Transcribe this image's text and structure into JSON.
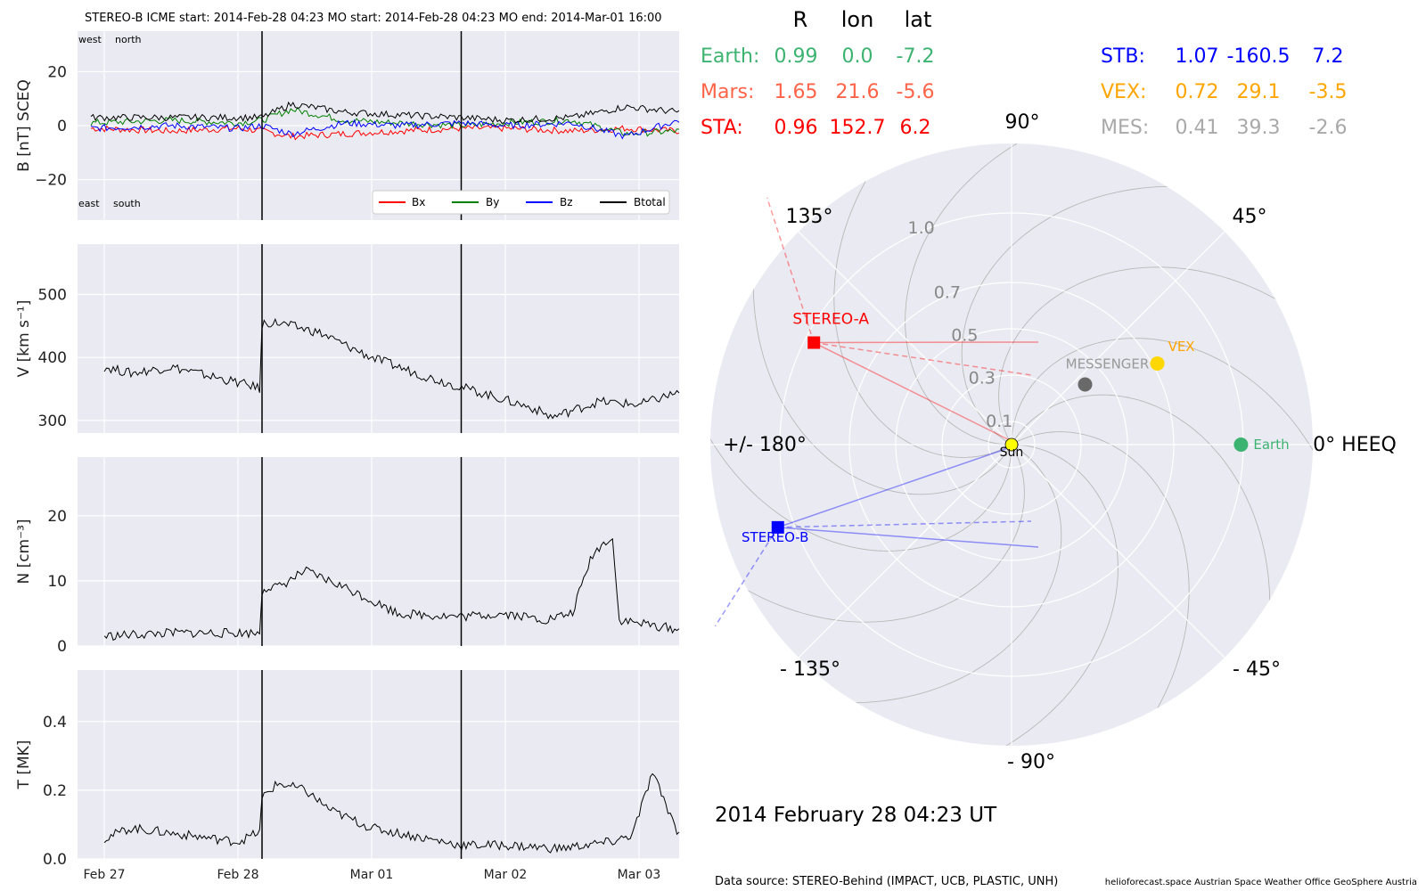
{
  "header": "STEREO-B    ICME start: 2014-Feb-28 04:23    MO start: 2014-Feb-28 04:23    MO end: 2014-Mar-01 16:00",
  "time_axis": {
    "start_day": "Feb 27 00:00",
    "ticks": [
      "Feb 27",
      "Feb 28",
      "Mar 01",
      "Mar 02",
      "Mar 03"
    ],
    "range_days": [
      -0.2,
      4.3
    ],
    "event_lines_days": [
      1.18,
      2.67
    ]
  },
  "panel_annotations": {
    "west": "west",
    "north": "north",
    "east": "east",
    "south": "south"
  },
  "legend": [
    "Bx",
    "By",
    "Bz",
    "Btotal"
  ],
  "colors": {
    "Bx": "#ff0000",
    "By": "#008000",
    "Bz": "#0000ff",
    "Btotal": "#000000",
    "plot_bg": "#eaeaf2",
    "earth": "#3cb371",
    "mars": "#ff6347",
    "sta": "#ff0000",
    "stb": "#0000ff",
    "vex": "#ffa500",
    "mes": "#a9a9a9"
  },
  "chart_data": [
    {
      "type": "line",
      "ylabel": "B [nT] SCEQ",
      "ylim": [
        -35,
        35
      ],
      "yticks": [
        "20",
        "0",
        "−20"
      ],
      "ytick_values": [
        20,
        0,
        -20
      ],
      "series": [
        {
          "name": "Bx",
          "x": [
            -0.1,
            0.5,
            1.0,
            1.18,
            1.4,
            1.8,
            2.2,
            2.67,
            3.0,
            3.5,
            3.9,
            4.3
          ],
          "y": [
            -1,
            -2,
            -1,
            -2,
            -4,
            -3,
            -2,
            -1,
            -1,
            -2,
            -1,
            -2
          ]
        },
        {
          "name": "By",
          "x": [
            -0.1,
            0.5,
            1.0,
            1.18,
            1.4,
            1.8,
            2.2,
            2.67,
            3.0,
            3.5,
            3.9,
            4.3
          ],
          "y": [
            1,
            2,
            1,
            2,
            6,
            2,
            1,
            0,
            1,
            2,
            -3,
            -2
          ]
        },
        {
          "name": "Bz",
          "x": [
            -0.1,
            0.5,
            1.0,
            1.18,
            1.4,
            1.8,
            2.2,
            2.67,
            3.0,
            3.5,
            3.9,
            4.3
          ],
          "y": [
            -1,
            0,
            -1,
            0,
            -3,
            1,
            0,
            1,
            0,
            1,
            -4,
            2
          ]
        },
        {
          "name": "Btotal",
          "x": [
            -0.1,
            0.5,
            1.0,
            1.18,
            1.4,
            1.8,
            2.2,
            2.67,
            3.0,
            3.5,
            3.9,
            4.3
          ],
          "y": [
            3,
            3,
            3,
            3,
            8,
            5,
            4,
            3,
            2,
            3,
            7,
            5
          ]
        }
      ]
    },
    {
      "type": "line",
      "ylabel": "V [km s⁻¹]",
      "ylim": [
        280,
        580
      ],
      "yticks": [
        "500",
        "400",
        "300"
      ],
      "ytick_values": [
        500,
        400,
        300
      ],
      "series": [
        {
          "name": "V",
          "x": [
            0.0,
            0.2,
            0.5,
            0.8,
            1.1,
            1.17,
            1.18,
            1.3,
            1.6,
            2.0,
            2.4,
            2.8,
            3.2,
            3.35,
            3.7,
            4.0,
            4.3
          ],
          "y": [
            385,
            375,
            385,
            370,
            355,
            350,
            455,
            455,
            440,
            400,
            370,
            345,
            320,
            305,
            330,
            325,
            345
          ]
        }
      ]
    },
    {
      "type": "line",
      "ylabel": "N [cm⁻³]",
      "ylim": [
        0,
        29
      ],
      "yticks": [
        "20",
        "10",
        "0"
      ],
      "ytick_values": [
        20,
        10,
        0
      ],
      "series": [
        {
          "name": "N",
          "x": [
            0.0,
            0.5,
            1.0,
            1.17,
            1.18,
            1.3,
            1.5,
            1.8,
            2.2,
            2.67,
            3.0,
            3.3,
            3.5,
            3.65,
            3.8,
            3.85,
            4.0,
            4.3
          ],
          "y": [
            1.5,
            2.0,
            2.0,
            2.0,
            9.0,
            9.0,
            11.5,
            9.0,
            5.0,
            4.5,
            5.0,
            4.0,
            5.0,
            14.0,
            17.0,
            4.0,
            3.5,
            2.5
          ]
        }
      ]
    },
    {
      "type": "line",
      "ylabel": "T [MK]",
      "ylim": [
        0,
        0.55
      ],
      "yticks": [
        "0.4",
        "0.2",
        "0.0"
      ],
      "ytick_values": [
        0.4,
        0.2,
        0.0
      ],
      "series": [
        {
          "name": "T",
          "x": [
            0.0,
            0.2,
            0.4,
            0.6,
            0.8,
            1.0,
            1.17,
            1.18,
            1.3,
            1.5,
            1.7,
            2.0,
            2.4,
            2.67,
            3.0,
            3.4,
            3.8,
            3.95,
            4.1,
            4.3
          ],
          "y": [
            0.06,
            0.09,
            0.08,
            0.07,
            0.06,
            0.05,
            0.08,
            0.18,
            0.22,
            0.2,
            0.14,
            0.09,
            0.06,
            0.04,
            0.04,
            0.03,
            0.05,
            0.07,
            0.25,
            0.07
          ]
        }
      ]
    },
    {
      "type": "scatter",
      "subtype": "polar",
      "r_max": 1.3,
      "r_ticks": [
        "0.1",
        "0.3",
        "0.5",
        "0.7",
        "1.0"
      ],
      "r_tick_values": [
        0.1,
        0.3,
        0.5,
        0.7,
        1.0
      ],
      "angle_labels": [
        "0° HEEQ",
        "45°",
        "90°",
        "135°",
        "+/- 180°",
        "- 135°",
        "- 90°",
        "- 45°"
      ],
      "angle_values": [
        0,
        45,
        90,
        135,
        180,
        -135,
        -90,
        -45
      ],
      "bodies": [
        {
          "name": "Sun",
          "r": 0.0,
          "lon": 0.0,
          "color": "#ffff00"
        },
        {
          "name": "Earth",
          "r": 0.99,
          "lon": 0.0,
          "color": "#3cb371"
        },
        {
          "name": "VEX",
          "r": 0.72,
          "lon": 29.1,
          "color": "#ffd700"
        },
        {
          "name": "MESSENGER",
          "r": 0.41,
          "lon": 39.3,
          "color": "#696969"
        },
        {
          "name": "STEREO-A",
          "r": 0.96,
          "lon": 152.7,
          "color": "#ff0000"
        },
        {
          "name": "STEREO-B",
          "r": 1.07,
          "lon": -160.5,
          "color": "#0000ff"
        }
      ]
    }
  ],
  "table": {
    "headers": [
      "R",
      "lon",
      "lat"
    ],
    "rows_left": [
      {
        "label": "Earth:",
        "R": "0.99",
        "lon": "0.0",
        "lat": "-7.2",
        "color": "#3cb371"
      },
      {
        "label": "Mars:",
        "R": "1.65",
        "lon": "21.6",
        "lat": "-5.6",
        "color": "#ff6347"
      },
      {
        "label": "STA:",
        "R": "0.96",
        "lon": "152.7",
        "lat": "6.2",
        "color": "#ff0000"
      }
    ],
    "rows_right": [
      {
        "label": "STB:",
        "R": "1.07",
        "lon": "-160.5",
        "lat": "7.2",
        "color": "#0000ff"
      },
      {
        "label": "VEX:",
        "R": "0.72",
        "lon": "29.1",
        "lat": "-3.5",
        "color": "#ffa500"
      },
      {
        "label": "MES:",
        "R": "0.41",
        "lon": "39.3",
        "lat": "-2.6",
        "color": "#a9a9a9"
      }
    ]
  },
  "timestamp": "2014 February 28  04:23 UT",
  "footer": {
    "source": "Data source: STEREO-Behind (IMPACT, UCB, PLASTIC, UNH)",
    "credits": "helioforecast.space   Austrian Space Weather Office   GeoSphere Austria"
  }
}
